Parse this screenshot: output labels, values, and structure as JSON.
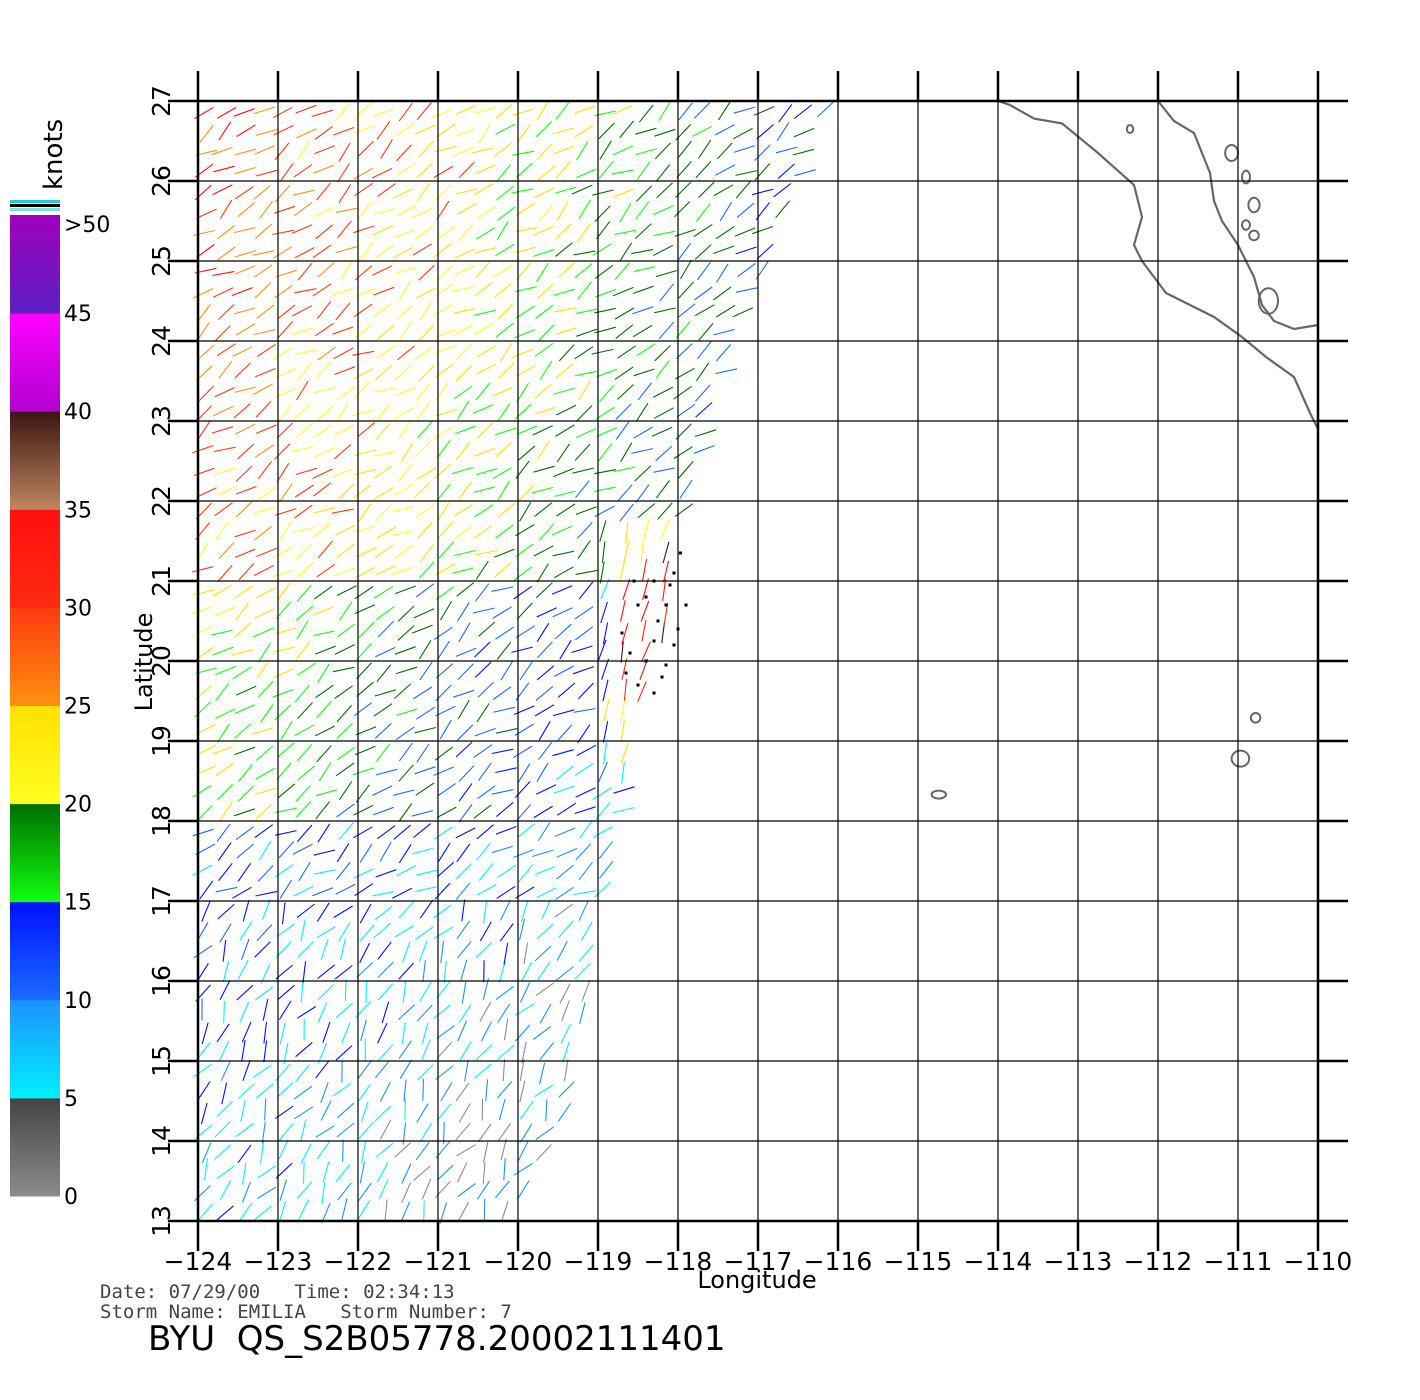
{
  "colorbar": {
    "unit": "knots",
    "over_label": ">50",
    "labels": [
      "0",
      "5",
      "10",
      "15",
      "20",
      "25",
      "30",
      "35",
      "40",
      "45"
    ],
    "bands": [
      {
        "from": 0,
        "to": 5,
        "top": "#444444",
        "bottom": "#8c8c8c"
      },
      {
        "from": 5,
        "to": 10,
        "top": "#1e90ff",
        "bottom": "#00f0ff"
      },
      {
        "from": 10,
        "to": 15,
        "top": "#0010ff",
        "bottom": "#1a6cff"
      },
      {
        "from": 15,
        "to": 20,
        "top": "#006e00",
        "bottom": "#10ff10"
      },
      {
        "from": 20,
        "to": 25,
        "top": "#ffe000",
        "bottom": "#ffff20"
      },
      {
        "from": 25,
        "to": 30,
        "top": "#ff3a10",
        "bottom": "#ff9010"
      },
      {
        "from": 30,
        "to": 35,
        "top": "#ff1010",
        "bottom": "#ff2a10"
      },
      {
        "from": 35,
        "to": 40,
        "top": "#3a1510",
        "bottom": "#c08660"
      },
      {
        "from": 40,
        "to": 45,
        "top": "#ff00ff",
        "bottom": "#b000d0"
      },
      {
        "from": 45,
        "to": 50,
        "top": "#a000c0",
        "bottom": "#5b20c0"
      }
    ],
    "over_colors": [
      "#20d0d0",
      "#000000",
      "#80e0e0"
    ]
  },
  "map": {
    "x_label": "Longitude",
    "y_label": "Latitude",
    "lon_range": [
      -124,
      -110
    ],
    "lat_range": [
      13,
      27
    ],
    "lon_ticks": [
      "-124",
      "-123",
      "-122",
      "-121",
      "-120",
      "-119",
      "-118",
      "-117",
      "-116",
      "-115",
      "-114",
      "-113",
      "-112",
      "-111",
      "-110"
    ],
    "lat_ticks": [
      "13",
      "14",
      "15",
      "16",
      "17",
      "18",
      "19",
      "20",
      "21",
      "22",
      "23",
      "24",
      "25",
      "26",
      "27"
    ],
    "coastline_color": "#666666",
    "grid_color": "#000000"
  },
  "swath": {
    "boundary_lonlat": [
      [
        -124,
        27
      ],
      [
        -116,
        27
      ],
      [
        -117.3,
        24
      ],
      [
        -118.0,
        21.2
      ],
      [
        -118.9,
        17.0
      ],
      [
        -119.3,
        14.5
      ],
      [
        -120.0,
        13
      ],
      [
        -124,
        13
      ]
    ]
  },
  "footer": {
    "date_line": "Date: 07/29/00   Time: 02:34:13",
    "storm_line": "Storm Name: EMILIA   Storm Number: 7",
    "product_id": "BYU  QS_S2B05778.20002111401"
  }
}
